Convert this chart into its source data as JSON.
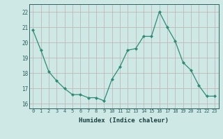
{
  "x": [
    0,
    1,
    2,
    3,
    4,
    5,
    6,
    7,
    8,
    9,
    10,
    11,
    12,
    13,
    14,
    15,
    16,
    17,
    18,
    19,
    20,
    21,
    22,
    23
  ],
  "y": [
    20.8,
    19.5,
    18.1,
    17.5,
    17.0,
    16.6,
    16.6,
    16.4,
    16.4,
    16.2,
    17.6,
    18.4,
    19.5,
    19.6,
    20.4,
    20.4,
    22.0,
    21.0,
    20.1,
    18.7,
    18.2,
    17.2,
    16.5,
    16.5
  ],
  "line_color": "#2e8b76",
  "marker": "D",
  "marker_size": 2.0,
  "bg_color": "#cde8e5",
  "grid_color": "#c0b8b8",
  "xlabel": "Humidex (Indice chaleur)",
  "ylim": [
    15.7,
    22.5
  ],
  "xlim": [
    -0.5,
    23.5
  ],
  "yticks": [
    16,
    17,
    18,
    19,
    20,
    21,
    22
  ],
  "xticks": [
    0,
    1,
    2,
    3,
    4,
    5,
    6,
    7,
    8,
    9,
    10,
    11,
    12,
    13,
    14,
    15,
    16,
    17,
    18,
    19,
    20,
    21,
    22,
    23
  ]
}
